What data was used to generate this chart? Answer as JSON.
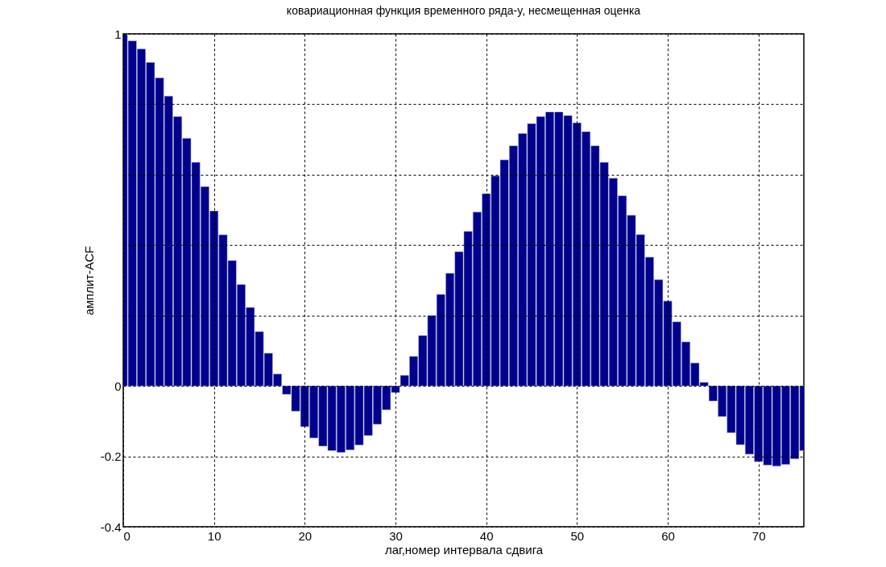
{
  "chart_data": {
    "type": "bar",
    "title": "ковариационная функция временного ряда-y, несмещенная оценка",
    "xlabel": "лаг,номер интервала сдвига",
    "ylabel": "амплит-ACF",
    "x": [
      0,
      1,
      2,
      3,
      4,
      5,
      6,
      7,
      8,
      9,
      10,
      11,
      12,
      13,
      14,
      15,
      16,
      17,
      18,
      19,
      20,
      21,
      22,
      23,
      24,
      25,
      26,
      27,
      28,
      29,
      30,
      31,
      32,
      33,
      34,
      35,
      36,
      37,
      38,
      39,
      40,
      41,
      42,
      43,
      44,
      45,
      46,
      47,
      48,
      49,
      50,
      51,
      52,
      53,
      54,
      55,
      56,
      57,
      58,
      59,
      60,
      61,
      62,
      63,
      64,
      65,
      66,
      67,
      68,
      69,
      70,
      71,
      72,
      73,
      74,
      75
    ],
    "values": [
      1.0,
      0.98,
      0.957,
      0.919,
      0.875,
      0.823,
      0.765,
      0.703,
      0.635,
      0.566,
      0.497,
      0.429,
      0.356,
      0.288,
      0.223,
      0.154,
      0.093,
      0.034,
      -0.024,
      -0.072,
      -0.116,
      -0.148,
      -0.171,
      -0.184,
      -0.189,
      -0.182,
      -0.168,
      -0.141,
      -0.109,
      -0.068,
      -0.019,
      0.03,
      0.084,
      0.143,
      0.2,
      0.26,
      0.32,
      0.381,
      0.439,
      0.494,
      0.546,
      0.597,
      0.642,
      0.682,
      0.717,
      0.745,
      0.765,
      0.778,
      0.778,
      0.768,
      0.747,
      0.722,
      0.682,
      0.635,
      0.59,
      0.54,
      0.485,
      0.43,
      0.366,
      0.302,
      0.241,
      0.182,
      0.125,
      0.065,
      0.01,
      -0.043,
      -0.087,
      -0.133,
      -0.167,
      -0.194,
      -0.215,
      -0.225,
      -0.228,
      -0.223,
      -0.207,
      -0.184
    ],
    "color": "#00008b",
    "xlim": [
      0,
      75
    ],
    "xticks": [
      0,
      10,
      20,
      30,
      40,
      50,
      60,
      70
    ],
    "ylim": [
      -0.4,
      1
    ],
    "yticks": [
      -0.4,
      -0.2,
      0,
      {
        "value": 0.2,
        "label": null
      },
      {
        "value": 0.4,
        "label": null
      },
      {
        "value": 0.6,
        "label": null
      },
      {
        "value": 0.8,
        "label": null
      },
      1
    ],
    "grid": true
  }
}
